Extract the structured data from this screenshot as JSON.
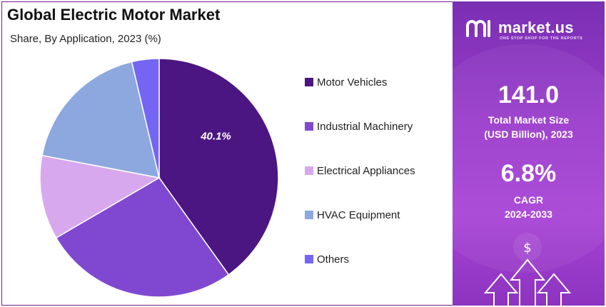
{
  "chart_data": {
    "type": "pie",
    "title": "Global Electric Motor Market",
    "subtitle": "Share, By Application, 2023 (%)",
    "categories": [
      "Motor Vehicles",
      "Industrial Machinery",
      "Electrical Appliances",
      "HVAC Equipment",
      "Others"
    ],
    "values": [
      40.1,
      26.5,
      11.4,
      18.3,
      3.7
    ],
    "colors": [
      "#4b1681",
      "#8048d0",
      "#d8a8ee",
      "#8ca8df",
      "#7466f2"
    ],
    "data_labels": [
      "40.1%",
      "",
      "",
      "",
      ""
    ],
    "start_angle": "12 o'clock",
    "direction": "clockwise",
    "legend_position": "right"
  },
  "panel": {
    "brand": "market.us",
    "tagline": "ONE STOP SHOP FOR THE REPORTS",
    "market_size_value": "141.0",
    "market_size_label_1": "Total Market Size",
    "market_size_label_2": "(USD Billion), 2023",
    "cagr_value": "6.8%",
    "cagr_label_1": "CAGR",
    "cagr_label_2": "2024-2033",
    "dollar_symbol": "$"
  },
  "colors": {
    "frame": "#6b1f8a",
    "panel_top": "#7a2fb3",
    "panel_bottom": "#a844d6"
  }
}
